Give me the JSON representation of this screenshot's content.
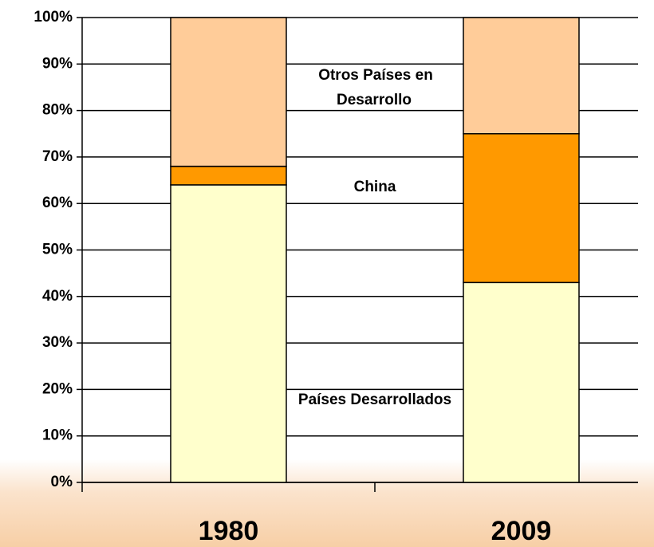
{
  "chart_data": {
    "type": "stacked_bar",
    "categories": [
      "1980",
      "2009"
    ],
    "series": [
      {
        "name": "Países Desarrollados",
        "color": "#ffffcc",
        "values": [
          64,
          43
        ]
      },
      {
        "name": "China",
        "color": "#ff9900",
        "values": [
          4,
          32
        ]
      },
      {
        "name": "Otros Países en Desarrollo",
        "color": "#ffcc99",
        "values": [
          32,
          25
        ]
      }
    ],
    "ylim": [
      0,
      100
    ],
    "yticks": [
      {
        "value": 0,
        "label": "0%"
      },
      {
        "value": 10,
        "label": "10%"
      },
      {
        "value": 20,
        "label": "20%"
      },
      {
        "value": 30,
        "label": "30%"
      },
      {
        "value": 40,
        "label": "40%"
      },
      {
        "value": 50,
        "label": "50%"
      },
      {
        "value": 60,
        "label": "60%"
      },
      {
        "value": 70,
        "label": "70%"
      },
      {
        "value": 80,
        "label": "80%"
      },
      {
        "value": 90,
        "label": "90%"
      },
      {
        "value": 100,
        "label": "100%"
      }
    ],
    "grid": true
  }
}
